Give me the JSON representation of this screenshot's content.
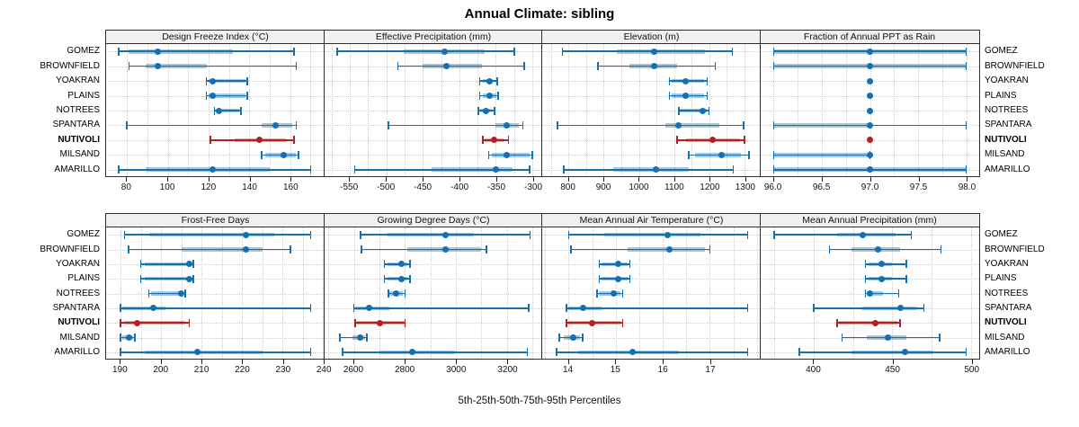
{
  "title": "Annual Climate: sibling",
  "caption": "5th-25th-50th-75th-95th Percentiles",
  "sites": [
    "GOMEZ",
    "BROWNFIELD",
    "YOAKRAN",
    "PLAINS",
    "NOTREES",
    "SPANTARA",
    "NUTIVOLI",
    "MILSAND",
    "AMARILLO"
  ],
  "highlight_site": "NUTIVOLI",
  "colors": {
    "series": "#1470ae",
    "series_band": "rgba(20,112,174,0.38)",
    "highlight": "#b1211f",
    "highlight_band": "rgba(177,33,31,0.38)",
    "header_bg": "#f0f0f0",
    "panel_border": "#2e2e2e",
    "gridline": "#cdcdcd"
  },
  "chart_data": {
    "type": "dot-whisker-trellis",
    "percentile_levels": [
      5,
      25,
      50,
      75,
      95
    ],
    "legend": "whisker = 5th-95th, band = 25th-75th, dot = median",
    "grid": "dotted horizontal per site, dotted vertical at ticks and midpoints",
    "panels": [
      {
        "title": "Design Freeze Index (°C)",
        "grid_row": 0,
        "grid_col": 0,
        "xlim": [
          69.8,
          176.9
        ],
        "ticks": [
          80,
          100,
          120,
          140,
          160
        ],
        "tick_labels": [
          "80",
          "100",
          "120",
          "140",
          "160"
        ],
        "minor_step": 10,
        "values": {
          "GOMEZ": [
            76,
            81,
            95,
            132,
            162
          ],
          "BROWNFIELD": [
            81,
            89,
            95,
            119,
            163
          ],
          "YOAKRAN": [
            119,
            120,
            122,
            138,
            139
          ],
          "PLAINS": [
            119,
            120,
            122,
            138,
            139
          ],
          "NOTREES": [
            123,
            124,
            125,
            135,
            136
          ],
          "SPANTARA": [
            80,
            146,
            153,
            161,
            163
          ],
          "NUTIVOLI": [
            121,
            133,
            145,
            158,
            162
          ],
          "MILSAND": [
            146,
            148,
            157,
            163,
            164
          ],
          "AMARILLO": [
            76,
            89,
            122,
            150,
            170
          ]
        }
      },
      {
        "title": "Effective Precipitation (mm)",
        "grid_row": 0,
        "grid_col": 1,
        "xlim": [
          -585,
          -286
        ],
        "ticks": [
          -550,
          -500,
          -450,
          -400,
          -350,
          -300
        ],
        "tick_labels": [
          "-550",
          "-500",
          "-450",
          "-400",
          "-350",
          "-300"
        ],
        "minor_step": 25,
        "values": {
          "GOMEZ": [
            -567,
            -476,
            -420,
            -365,
            -325
          ],
          "BROWNFIELD": [
            -484,
            -450,
            -418,
            -369,
            -311
          ],
          "YOAKRAN": [
            -372,
            -368,
            -359,
            -354,
            -348
          ],
          "PLAINS": [
            -372,
            -368,
            -359,
            -349,
            -347
          ],
          "NOTREES": [
            -374,
            -371,
            -364,
            -355,
            -352
          ],
          "SPANTARA": [
            -497,
            -350,
            -335,
            -318,
            -313
          ],
          "NUTIVOLI": [
            -368,
            -365,
            -353,
            -340,
            -333
          ],
          "MILSAND": [
            -360,
            -356,
            -335,
            -304,
            -300
          ],
          "AMARILLO": [
            -543,
            -438,
            -350,
            -327,
            -304
          ]
        }
      },
      {
        "title": "Elevation (m)",
        "grid_row": 0,
        "grid_col": 2,
        "xlim": [
          725,
          1346
        ],
        "ticks": [
          800,
          900,
          1000,
          1100,
          1200,
          1300
        ],
        "tick_labels": [
          "800",
          "900",
          "1000",
          "1100",
          "1200",
          "1300"
        ],
        "minor_step": 50,
        "values": {
          "GOMEZ": [
            783,
            938,
            1042,
            1188,
            1266
          ],
          "BROWNFIELD": [
            883,
            972,
            1042,
            1108,
            1217
          ],
          "YOAKRAN": [
            1087,
            1093,
            1132,
            1185,
            1194
          ],
          "PLAINS": [
            1087,
            1093,
            1132,
            1185,
            1194
          ],
          "NOTREES": [
            1113,
            1117,
            1182,
            1192,
            1199
          ],
          "SPANTARA": [
            769,
            1074,
            1113,
            1228,
            1297
          ],
          "NUTIVOLI": [
            1108,
            1134,
            1210,
            1287,
            1300
          ],
          "MILSAND": [
            1142,
            1160,
            1236,
            1291,
            1313
          ],
          "AMARILLO": [
            786,
            927,
            1047,
            1142,
            1268
          ]
        }
      },
      {
        "title": "Fraction of Annual PPT as Rain",
        "grid_row": 0,
        "grid_col": 3,
        "xlim": [
          95.86,
          98.13
        ],
        "ticks": [
          96.0,
          96.5,
          97.0,
          97.5,
          98.0
        ],
        "tick_labels": [
          "96.0",
          "96.5",
          "97.0",
          "97.5",
          "98.0"
        ],
        "minor_step": 0.25,
        "values": {
          "GOMEZ": [
            96.0,
            96.0,
            97.0,
            98.0,
            98.0
          ],
          "BROWNFIELD": [
            96.0,
            96.0,
            97.0,
            98.0,
            98.0
          ],
          "YOAKRAN": [
            97.0,
            97.0,
            97.0,
            97.0,
            97.0
          ],
          "PLAINS": [
            97.0,
            97.0,
            97.0,
            97.0,
            97.0
          ],
          "NOTREES": [
            97.0,
            97.0,
            97.0,
            97.0,
            97.0
          ],
          "SPANTARA": [
            96.0,
            96.0,
            97.0,
            97.0,
            98.0
          ],
          "NUTIVOLI": [
            97.0,
            97.0,
            97.0,
            97.0,
            97.0
          ],
          "MILSAND": [
            96.0,
            96.0,
            97.0,
            97.0,
            97.0
          ],
          "AMARILLO": [
            96.0,
            96.0,
            97.0,
            98.0,
            98.0
          ]
        }
      },
      {
        "title": "Frost-Free Days",
        "grid_row": 1,
        "grid_col": 0,
        "xlim": [
          186.4,
          240.4
        ],
        "ticks": [
          190,
          200,
          210,
          220,
          230,
          240
        ],
        "tick_labels": [
          "190",
          "200",
          "210",
          "220",
          "230",
          "240"
        ],
        "minor_step": 5,
        "values": {
          "GOMEZ": [
            191,
            197,
            221,
            228,
            237
          ],
          "BROWNFIELD": [
            192,
            205,
            221,
            225,
            232
          ],
          "YOAKRAN": [
            195,
            196,
            207,
            207.5,
            208
          ],
          "PLAINS": [
            195,
            196,
            207,
            207.5,
            208
          ],
          "NOTREES": [
            197,
            197.5,
            205,
            205.5,
            206
          ],
          "SPANTARA": [
            190,
            190.5,
            198,
            201,
            237
          ],
          "NUTIVOLI": [
            190,
            191,
            194,
            206,
            207
          ],
          "MILSAND": [
            190,
            190.5,
            192,
            193,
            193.5
          ],
          "AMARILLO": [
            190,
            196,
            209,
            225,
            237
          ]
        }
      },
      {
        "title": "Growing Degree Days (°C)",
        "grid_row": 1,
        "grid_col": 1,
        "xlim": [
          2483,
          3340
        ],
        "ticks": [
          2600,
          2800,
          3000,
          3200
        ],
        "tick_labels": [
          "2600",
          "2800",
          "3000",
          "3200"
        ],
        "minor_step": 100,
        "values": {
          "GOMEZ": [
            2625,
            2730,
            2960,
            3070,
            3290
          ],
          "BROWNFIELD": [
            2630,
            2810,
            2960,
            3100,
            3120
          ],
          "YOAKRAN": [
            2720,
            2730,
            2785,
            2810,
            2820
          ],
          "PLAINS": [
            2720,
            2730,
            2785,
            2810,
            2820
          ],
          "NOTREES": [
            2735,
            2740,
            2765,
            2790,
            2800
          ],
          "SPANTARA": [
            2600,
            2605,
            2660,
            2740,
            3285
          ],
          "NUTIVOLI": [
            2605,
            2610,
            2700,
            2795,
            2800
          ],
          "MILSAND": [
            2545,
            2595,
            2625,
            2645,
            2650
          ],
          "AMARILLO": [
            2555,
            2700,
            2830,
            2995,
            3280
          ]
        }
      },
      {
        "title": "Mean Annual Air Temperature (°C)",
        "grid_row": 1,
        "grid_col": 2,
        "xlim": [
          13.44,
          18.08
        ],
        "ticks": [
          14,
          15,
          16,
          17
        ],
        "tick_labels": [
          "14",
          "15",
          "16",
          "17"
        ],
        "minor_step": 0.5,
        "values": {
          "GOMEZ": [
            14.0,
            14.75,
            16.1,
            16.8,
            17.8
          ],
          "BROWNFIELD": [
            14.05,
            15.25,
            16.15,
            16.9,
            17.0
          ],
          "YOAKRAN": [
            14.65,
            14.7,
            15.05,
            15.25,
            15.3
          ],
          "PLAINS": [
            14.65,
            14.7,
            15.05,
            15.25,
            15.3
          ],
          "NOTREES": [
            14.6,
            14.65,
            14.95,
            15.1,
            15.15
          ],
          "SPANTARA": [
            13.95,
            14.0,
            14.3,
            14.7,
            17.8
          ],
          "NUTIVOLI": [
            13.95,
            14.0,
            14.5,
            15.1,
            15.15
          ],
          "MILSAND": [
            13.8,
            13.9,
            14.1,
            14.25,
            14.3
          ],
          "AMARILLO": [
            13.75,
            14.2,
            15.35,
            16.35,
            17.8
          ]
        }
      },
      {
        "title": "Mean Annual Precipitation (mm)",
        "grid_row": 1,
        "grid_col": 3,
        "xlim": [
          366,
          505
        ],
        "ticks": [
          400,
          450,
          500
        ],
        "tick_labels": [
          "400",
          "450",
          "500"
        ],
        "minor_step": 25,
        "values": {
          "GOMEZ": [
            375,
            415,
            431,
            452,
            462
          ],
          "BROWNFIELD": [
            410,
            424,
            441,
            455,
            481
          ],
          "YOAKRAN": [
            433,
            435,
            443,
            450,
            459
          ],
          "PLAINS": [
            433,
            435,
            443,
            450,
            459
          ],
          "NOTREES": [
            433,
            434,
            436,
            444,
            454
          ],
          "SPANTARA": [
            400,
            431,
            455,
            466,
            470
          ],
          "NUTIVOLI": [
            415,
            416,
            439,
            453,
            455
          ],
          "MILSAND": [
            418,
            434,
            447,
            459,
            480
          ],
          "AMARILLO": [
            391,
            424,
            458,
            476,
            497
          ]
        }
      }
    ]
  }
}
